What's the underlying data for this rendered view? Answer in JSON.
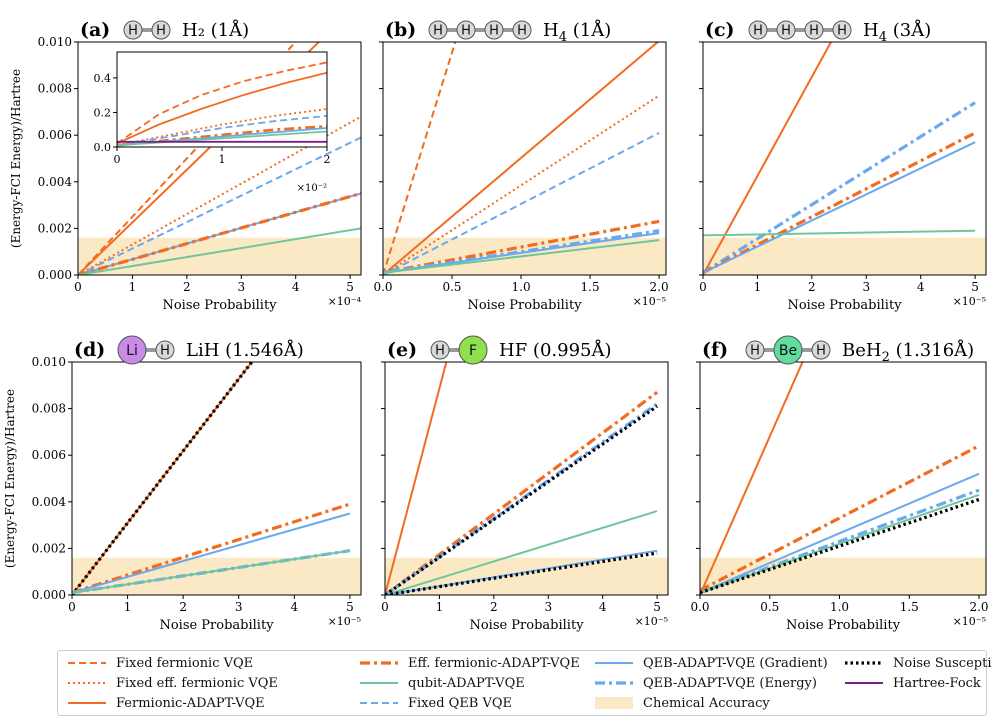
{
  "figure": {
    "ylabel": "(Energy-FCI Energy)/Hartree",
    "xlabel": "Noise Probability",
    "legend": [
      {
        "key": "fixed_ferm",
        "label": "Fixed fermionic VQE",
        "color": "#f26b21",
        "style": "dashed",
        "width": "normal"
      },
      {
        "key": "fixed_eff_ferm",
        "label": "Fixed eff. fermionic VQE",
        "color": "#f26b21",
        "style": "dotted",
        "width": "normal"
      },
      {
        "key": "ferm_adapt",
        "label": "Fermionic-ADAPT-VQE",
        "color": "#f26b21",
        "style": "solid",
        "width": "normal"
      },
      {
        "key": "eff_ferm_adapt",
        "label": "Eff. fermionic-ADAPT-VQE",
        "color": "#f26b21",
        "style": "dashdot",
        "width": "thick"
      },
      {
        "key": "qubit_adapt",
        "label": "qubit-ADAPT-VQE",
        "color": "#6fc69a",
        "style": "solid",
        "width": "normal"
      },
      {
        "key": "fixed_qeb",
        "label": "Fixed QEB VQE",
        "color": "#6aa8ef",
        "style": "dashed",
        "width": "normal"
      },
      {
        "key": "qeb_grad",
        "label": "QEB-ADAPT-VQE (Gradient)",
        "color": "#6aa8ef",
        "style": "solid",
        "width": "normal"
      },
      {
        "key": "qeb_energy",
        "label": "QEB-ADAPT-VQE (Energy)",
        "color": "#6aa8ef",
        "style": "dashdot",
        "width": "thick"
      },
      {
        "key": "chem_acc",
        "label": "Chemical Accuracy",
        "color": "#fbe9c6",
        "style": "patch",
        "width": "normal"
      },
      {
        "key": "noise_susc",
        "label": "Noise Susceptibility",
        "color": "#000000",
        "style": "dotted",
        "width": "thick"
      },
      {
        "key": "hf",
        "label": "Hartree-Fock",
        "color": "#7b1f8c",
        "style": "solid",
        "width": "normal"
      }
    ]
  },
  "chart_data": [
    {
      "type": "line",
      "panel_label": "(a)",
      "molecule": "H₂",
      "molecule_sub": "",
      "distance": "(1Å)",
      "atoms": [
        {
          "label": "H",
          "color": "#d9d9d9",
          "big": false
        },
        {
          "label": "H",
          "color": "#d9d9d9",
          "big": false
        }
      ],
      "xlim": [
        0,
        5.2
      ],
      "ylim": [
        0,
        0.01
      ],
      "xticks": [
        0,
        1,
        2,
        3,
        4,
        5
      ],
      "xtick_labels": [
        "0",
        "1",
        "2",
        "3",
        "4",
        "5"
      ],
      "yticks": [
        0,
        0.002,
        0.004,
        0.006,
        0.008,
        0.01
      ],
      "ytick_labels": [
        "0.000",
        "0.002",
        "0.004",
        "0.006",
        "0.008",
        "0.010"
      ],
      "x_exponent": "×10⁻⁴",
      "chemical_accuracy": 0.0016,
      "series": [
        {
          "key": "fixed_ferm",
          "x": [
            0,
            5
          ],
          "y": [
            0,
            0.0125
          ]
        },
        {
          "key": "ferm_adapt",
          "x": [
            0,
            5
          ],
          "y": [
            0,
            0.0113
          ]
        },
        {
          "key": "fixed_eff_ferm",
          "x": [
            0,
            5.2
          ],
          "y": [
            0,
            0.0068
          ]
        },
        {
          "key": "fixed_qeb",
          "x": [
            0,
            5.2
          ],
          "y": [
            0,
            0.0059
          ]
        },
        {
          "key": "qeb_grad",
          "x": [
            0,
            5.2
          ],
          "y": [
            0,
            0.0035
          ]
        },
        {
          "key": "eff_ferm_adapt",
          "x": [
            0,
            5.2
          ],
          "y": [
            0,
            0.0035
          ]
        },
        {
          "key": "qubit_adapt",
          "x": [
            0,
            5.2
          ],
          "y": [
            0,
            0.002
          ]
        }
      ],
      "inset": {
        "xlim": [
          0,
          2
        ],
        "ylim": [
          0,
          0.55
        ],
        "xticks": [
          0,
          1,
          2
        ],
        "xtick_labels": [
          "0",
          "1",
          "2"
        ],
        "yticks": [
          0,
          0.2,
          0.4
        ],
        "ytick_labels": [
          "0.0",
          "0.2",
          "0.4"
        ],
        "x_exponent": "×10⁻²",
        "series": [
          {
            "key": "fixed_ferm",
            "x": [
              0,
              0.4,
              0.8,
              1.2,
              1.6,
              2.0
            ],
            "y": [
              0.02,
              0.19,
              0.3,
              0.38,
              0.44,
              0.49
            ]
          },
          {
            "key": "ferm_adapt",
            "x": [
              0,
              0.4,
              0.8,
              1.2,
              1.6,
              2.0
            ],
            "y": [
              0.02,
              0.13,
              0.22,
              0.3,
              0.37,
              0.43
            ]
          },
          {
            "key": "fixed_eff_ferm",
            "x": [
              0,
              0.5,
              1.0,
              1.5,
              2.0
            ],
            "y": [
              0.01,
              0.07,
              0.13,
              0.18,
              0.22
            ]
          },
          {
            "key": "fixed_qeb",
            "x": [
              0,
              0.5,
              1.0,
              1.5,
              2.0
            ],
            "y": [
              0.01,
              0.06,
              0.11,
              0.15,
              0.18
            ]
          },
          {
            "key": "eff_ferm_adapt",
            "x": [
              0,
              0.5,
              1.0,
              1.5,
              2.0
            ],
            "y": [
              0.01,
              0.04,
              0.07,
              0.1,
              0.12
            ]
          },
          {
            "key": "qeb_grad",
            "x": [
              0,
              0.5,
              1.0,
              1.5,
              2.0
            ],
            "y": [
              0.01,
              0.035,
              0.06,
              0.085,
              0.11
            ]
          },
          {
            "key": "qubit_adapt",
            "x": [
              0,
              0.5,
              1.0,
              1.5,
              2.0
            ],
            "y": [
              0.01,
              0.03,
              0.05,
              0.07,
              0.09
            ]
          },
          {
            "key": "hf",
            "x": [
              0,
              2
            ],
            "y": [
              0.03,
              0.03
            ]
          }
        ]
      }
    },
    {
      "type": "line",
      "panel_label": "(b)",
      "molecule": "H",
      "molecule_sub": "4",
      "distance": "(1Å)",
      "atoms": [
        {
          "label": "H",
          "color": "#d9d9d9",
          "big": false
        },
        {
          "label": "H",
          "color": "#d9d9d9",
          "big": false
        },
        {
          "label": "H",
          "color": "#d9d9d9",
          "big": false
        },
        {
          "label": "H",
          "color": "#d9d9d9",
          "big": false
        }
      ],
      "xlim": [
        0,
        2.05
      ],
      "ylim": [
        0,
        0.01
      ],
      "xticks": [
        0,
        0.5,
        1.0,
        1.5,
        2.0
      ],
      "xtick_labels": [
        "0.0",
        "0.5",
        "1.0",
        "1.5",
        "2.0"
      ],
      "yticks": [
        0,
        0.002,
        0.004,
        0.006,
        0.008,
        0.01
      ],
      "ytick_labels": [],
      "x_exponent": "×10⁻⁵",
      "chemical_accuracy": 0.0016,
      "series": [
        {
          "key": "fixed_ferm",
          "x": [
            0,
            0.55
          ],
          "y": [
            0,
            0.0105
          ]
        },
        {
          "key": "ferm_adapt",
          "x": [
            0,
            2.05
          ],
          "y": [
            0,
            0.0103
          ]
        },
        {
          "key": "fixed_eff_ferm",
          "x": [
            0,
            2.0
          ],
          "y": [
            0,
            0.0077
          ]
        },
        {
          "key": "fixed_qeb",
          "x": [
            0,
            2.0
          ],
          "y": [
            0,
            0.0061
          ]
        },
        {
          "key": "eff_ferm_adapt",
          "x": [
            0,
            2.0
          ],
          "y": [
            0.0001,
            0.0023
          ]
        },
        {
          "key": "qeb_energy",
          "x": [
            0,
            2.0
          ],
          "y": [
            0.0001,
            0.0019
          ]
        },
        {
          "key": "qeb_grad",
          "x": [
            0,
            2.0
          ],
          "y": [
            0.0001,
            0.0018
          ]
        },
        {
          "key": "qubit_adapt",
          "x": [
            0,
            2.0
          ],
          "y": [
            0.0001,
            0.0015
          ]
        }
      ]
    },
    {
      "type": "line",
      "panel_label": "(c)",
      "molecule": "H",
      "molecule_sub": "4",
      "distance": "(3Å)",
      "atoms": [
        {
          "label": "H",
          "color": "#d9d9d9",
          "big": false
        },
        {
          "label": "H",
          "color": "#d9d9d9",
          "big": false
        },
        {
          "label": "H",
          "color": "#d9d9d9",
          "big": false
        },
        {
          "label": "H",
          "color": "#d9d9d9",
          "big": false
        }
      ],
      "xlim": [
        0,
        5.2
      ],
      "ylim": [
        0,
        0.01
      ],
      "xticks": [
        0,
        1,
        2,
        3,
        4,
        5
      ],
      "xtick_labels": [
        "0",
        "1",
        "2",
        "3",
        "4",
        "5"
      ],
      "yticks": [
        0,
        0.002,
        0.004,
        0.006,
        0.008,
        0.01
      ],
      "ytick_labels": [],
      "x_exponent": "×10⁻⁵",
      "chemical_accuracy": 0.0016,
      "series": [
        {
          "key": "ferm_adapt",
          "x": [
            0,
            2.4
          ],
          "y": [
            0,
            0.0102
          ]
        },
        {
          "key": "qeb_energy",
          "x": [
            0,
            5.0
          ],
          "y": [
            0.0001,
            0.0074
          ]
        },
        {
          "key": "eff_ferm_adapt",
          "x": [
            0,
            5.0
          ],
          "y": [
            0.0001,
            0.0061
          ]
        },
        {
          "key": "qeb_grad",
          "x": [
            0,
            5.0
          ],
          "y": [
            0.0001,
            0.0057
          ]
        },
        {
          "key": "qubit_adapt",
          "x": [
            0,
            5.0
          ],
          "y": [
            0.0017,
            0.0019
          ]
        }
      ]
    },
    {
      "type": "line",
      "panel_label": "(d)",
      "molecule": "LiH",
      "molecule_sub": "",
      "distance": "(1.546Å)",
      "atoms": [
        {
          "label": "Li",
          "color": "#c98ae8",
          "big": true
        },
        {
          "label": "H",
          "color": "#d9d9d9",
          "big": false
        }
      ],
      "xlim": [
        0,
        5.2
      ],
      "ylim": [
        0,
        0.01
      ],
      "xticks": [
        0,
        1,
        2,
        3,
        4,
        5
      ],
      "xtick_labels": [
        "0",
        "1",
        "2",
        "3",
        "4",
        "5"
      ],
      "yticks": [
        0,
        0.002,
        0.004,
        0.006,
        0.008,
        0.01
      ],
      "ytick_labels": [
        "0.000",
        "0.002",
        "0.004",
        "0.006",
        "0.008",
        "0.010"
      ],
      "x_exponent": "×10⁻⁵",
      "chemical_accuracy": 0.0016,
      "series": [
        {
          "key": "ferm_adapt",
          "x": [
            0,
            3.3
          ],
          "y": [
            0,
            0.0102
          ]
        },
        {
          "key": "noise_susc",
          "x": [
            0,
            3.3
          ],
          "y": [
            0,
            0.0102
          ]
        },
        {
          "key": "eff_ferm_adapt",
          "x": [
            0,
            5.0
          ],
          "y": [
            0.0001,
            0.0039
          ]
        },
        {
          "key": "qeb_grad",
          "x": [
            0,
            5.0
          ],
          "y": [
            0.0001,
            0.0035
          ]
        },
        {
          "key": "qeb_energy",
          "x": [
            0,
            5.0
          ],
          "y": [
            0.0001,
            0.0019
          ]
        },
        {
          "key": "qubit_adapt",
          "x": [
            0,
            5.0
          ],
          "y": [
            0.0001,
            0.0019
          ]
        }
      ]
    },
    {
      "type": "line",
      "panel_label": "(e)",
      "molecule": "HF",
      "molecule_sub": "",
      "distance": "(0.995Å)",
      "atoms": [
        {
          "label": "H",
          "color": "#d9d9d9",
          "big": false
        },
        {
          "label": "F",
          "color": "#8fe04f",
          "big": true
        }
      ],
      "xlim": [
        0,
        5.2
      ],
      "ylim": [
        0,
        0.01
      ],
      "xticks": [
        0,
        1,
        2,
        3,
        4,
        5
      ],
      "xtick_labels": [
        "0",
        "1",
        "2",
        "3",
        "4",
        "5"
      ],
      "yticks": [
        0,
        0.002,
        0.004,
        0.006,
        0.008,
        0.01
      ],
      "ytick_labels": [],
      "x_exponent": "×10⁻⁵",
      "chemical_accuracy": 0.0016,
      "series": [
        {
          "key": "ferm_adapt",
          "x": [
            0,
            1.15
          ],
          "y": [
            0,
            0.0102
          ]
        },
        {
          "key": "eff_ferm_adapt",
          "x": [
            0,
            5.0
          ],
          "y": [
            0,
            0.0087
          ]
        },
        {
          "key": "qeb_energy",
          "x": [
            0,
            5.0
          ],
          "y": [
            0,
            0.0082
          ]
        },
        {
          "key": "noise_susc",
          "x": [
            0,
            5.0
          ],
          "y": [
            0,
            0.0081
          ]
        },
        {
          "key": "qubit_adapt",
          "x": [
            0,
            5.0
          ],
          "y": [
            0,
            0.0036
          ]
        },
        {
          "key": "qeb_grad",
          "x": [
            0,
            5.0
          ],
          "y": [
            0,
            0.0019
          ]
        },
        {
          "key": "noise_susc",
          "x": [
            0,
            5.0
          ],
          "y": [
            0,
            0.0018
          ]
        }
      ]
    },
    {
      "type": "line",
      "panel_label": "(f)",
      "molecule": "BeH",
      "molecule_sub": "2",
      "distance": "(1.316Å)",
      "atoms": [
        {
          "label": "H",
          "color": "#d9d9d9",
          "big": false
        },
        {
          "label": "Be",
          "color": "#5fdc9e",
          "big": true
        },
        {
          "label": "H",
          "color": "#d9d9d9",
          "big": false
        }
      ],
      "xlim": [
        0,
        2.05
      ],
      "ylim": [
        0,
        0.01
      ],
      "xticks": [
        0,
        0.5,
        1.0,
        1.5,
        2.0
      ],
      "xtick_labels": [
        "0.0",
        "0.5",
        "1.0",
        "1.5",
        "2.0"
      ],
      "yticks": [
        0,
        0.002,
        0.004,
        0.006,
        0.008,
        0.01
      ],
      "ytick_labels": [],
      "x_exponent": "×10⁻⁵",
      "chemical_accuracy": 0.0016,
      "series": [
        {
          "key": "ferm_adapt",
          "x": [
            0,
            0.75
          ],
          "y": [
            0,
            0.0102
          ]
        },
        {
          "key": "eff_ferm_adapt",
          "x": [
            0,
            2.0
          ],
          "y": [
            0.0002,
            0.0064
          ]
        },
        {
          "key": "qeb_grad",
          "x": [
            0,
            2.0
          ],
          "y": [
            0.0001,
            0.0052
          ]
        },
        {
          "key": "qeb_energy",
          "x": [
            0,
            2.0
          ],
          "y": [
            0.0001,
            0.0045
          ]
        },
        {
          "key": "qubit_adapt",
          "x": [
            0,
            2.0
          ],
          "y": [
            0.0001,
            0.0043
          ]
        },
        {
          "key": "noise_susc",
          "x": [
            0,
            2.0
          ],
          "y": [
            0.0001,
            0.0041
          ]
        }
      ]
    }
  ]
}
